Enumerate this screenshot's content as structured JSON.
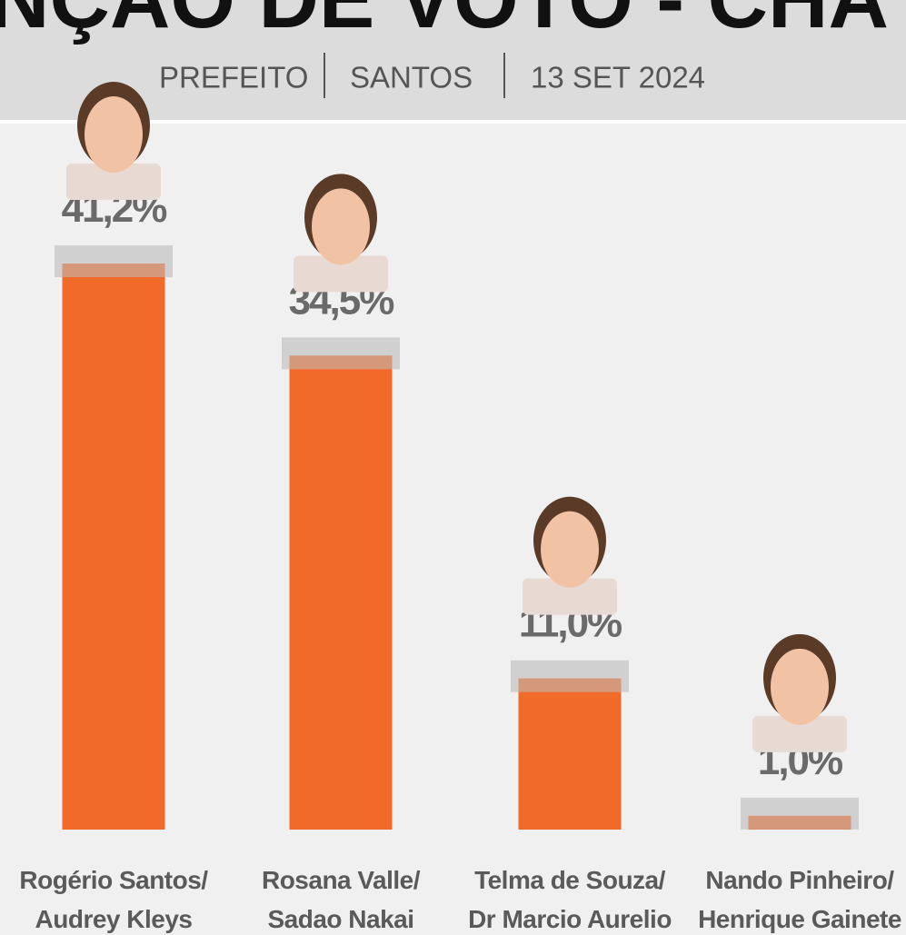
{
  "chart_data": {
    "type": "bar",
    "title": "NÇÃO DE VOTO - CHA",
    "subtitle": [
      "PREFEITO",
      "SANTOS",
      "13 SET 2024"
    ],
    "categories": [
      [
        "Rogério Santos/",
        "Audrey Kleys"
      ],
      [
        "Rosana Valle/",
        "Sadao Nakai"
      ],
      [
        "Telma de Souza/",
        "Dr Marcio Aurelio"
      ],
      [
        "Nando Pinheiro/",
        "Henrique Gainete"
      ]
    ],
    "values": [
      41.2,
      34.5,
      11.0,
      1.0
    ],
    "value_labels": [
      "41,2%",
      "34,5%",
      "11,0%",
      "1,0%"
    ],
    "color": "#f26a2a"
  }
}
